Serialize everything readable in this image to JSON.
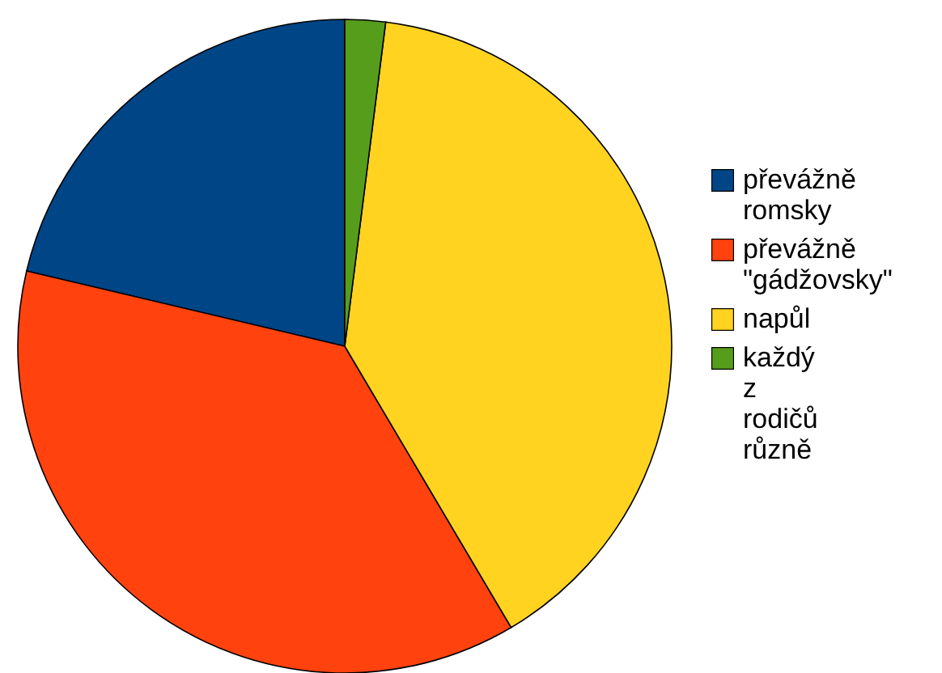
{
  "chart_data": {
    "type": "pie",
    "categories": [
      "převážně romsky",
      "převážně \"gádžovsky\"",
      "napůl",
      "každý z rodičů různě"
    ],
    "values": [
      21.3,
      37.2,
      39.5,
      2
    ],
    "colors": [
      "#004586",
      "#ff420e",
      "#ffd320",
      "#579d1c"
    ],
    "legend": "right"
  }
}
